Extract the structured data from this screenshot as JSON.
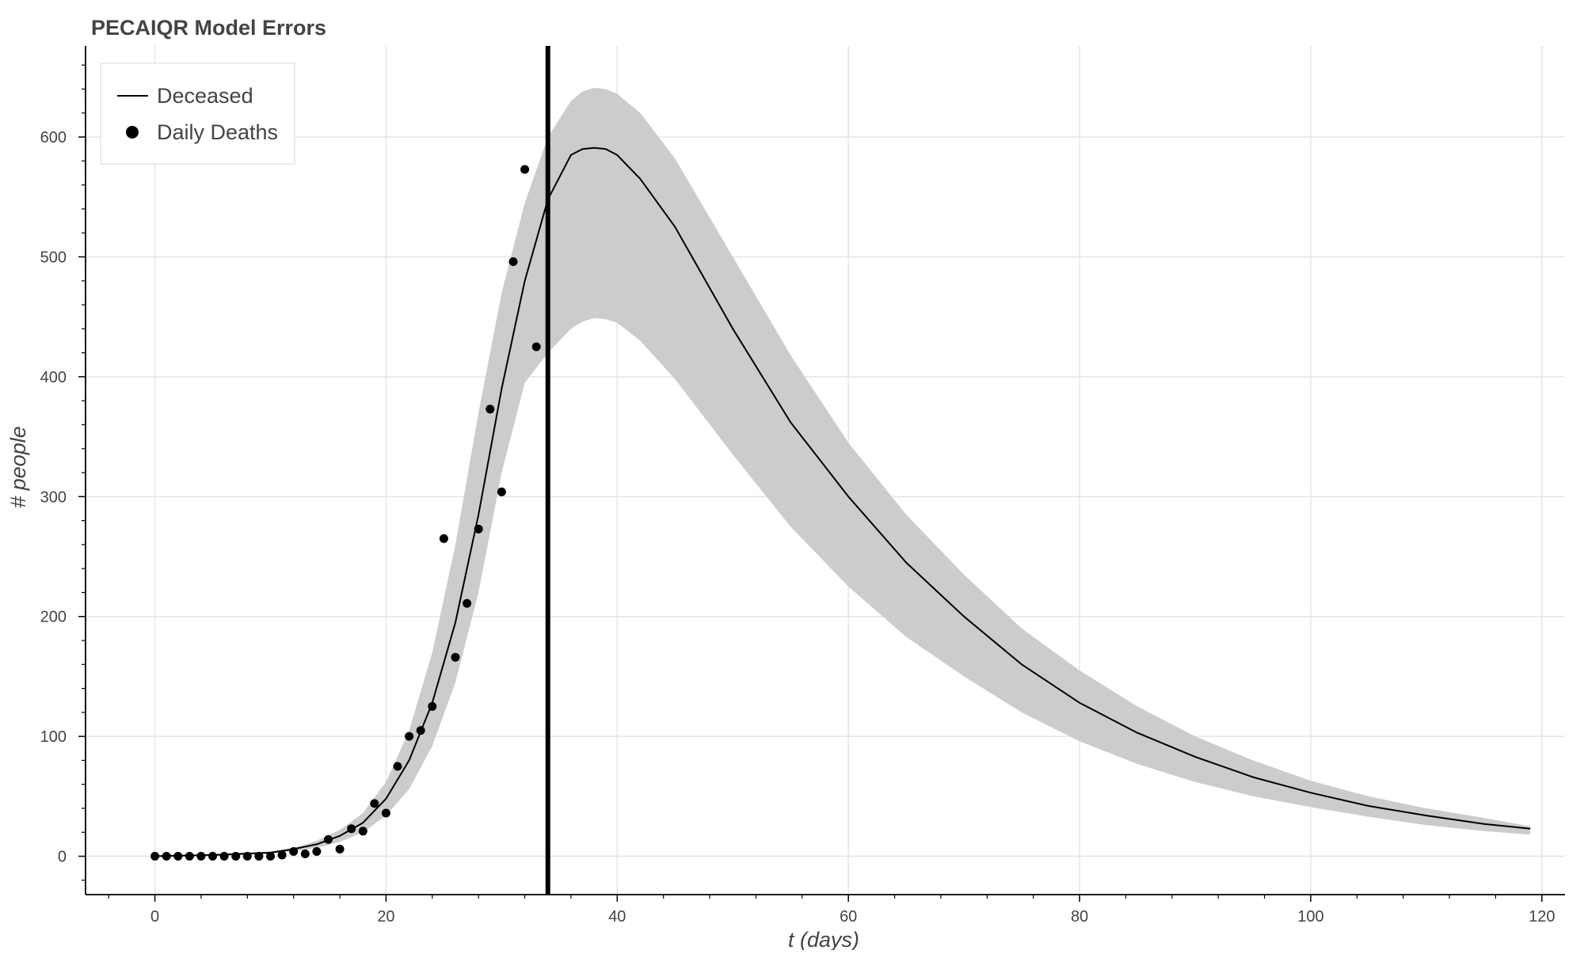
{
  "chart_data": {
    "type": "line",
    "title": "PECAIQR Model Errors",
    "xlabel": "t (days)",
    "ylabel": "# people",
    "xlim": [
      -6,
      122
    ],
    "ylim": [
      -32,
      676
    ],
    "x_ticks": [
      0,
      20,
      40,
      60,
      80,
      100,
      120
    ],
    "y_ticks": [
      0,
      100,
      200,
      300,
      400,
      500,
      600
    ],
    "grid": true,
    "legend_placement": "top-left",
    "legend": [
      {
        "label": "Deceased",
        "kind": "line"
      },
      {
        "label": "Daily Deaths",
        "kind": "marker"
      }
    ],
    "vertical_line_x": 34,
    "series": [
      {
        "name": "Deceased",
        "type": "line",
        "color": "#000000",
        "x": [
          0,
          5,
          10,
          12,
          14,
          16,
          18,
          20,
          22,
          24,
          26,
          28,
          30,
          32,
          34,
          36,
          37,
          38,
          39,
          40,
          42,
          45,
          50,
          55,
          60,
          65,
          70,
          75,
          80,
          85,
          90,
          95,
          100,
          105,
          110,
          115,
          119
        ],
        "y": [
          0,
          1,
          3,
          6,
          10,
          17,
          28,
          48,
          80,
          128,
          195,
          285,
          390,
          480,
          548,
          585,
          590,
          591,
          590,
          585,
          565,
          525,
          440,
          362,
          300,
          245,
          200,
          160,
          128,
          103,
          83,
          66,
          53,
          42,
          34,
          27,
          23
        ]
      },
      {
        "name": "Error band",
        "type": "area",
        "color": "#cccccc",
        "x": [
          0,
          5,
          10,
          12,
          14,
          16,
          18,
          20,
          22,
          24,
          26,
          28,
          30,
          32,
          34,
          36,
          37,
          38,
          39,
          40,
          42,
          45,
          50,
          55,
          60,
          65,
          70,
          75,
          80,
          85,
          90,
          95,
          100,
          105,
          110,
          115,
          119
        ],
        "upper": [
          1,
          2,
          4,
          7,
          13,
          22,
          36,
          62,
          105,
          170,
          260,
          370,
          470,
          545,
          600,
          630,
          638,
          641,
          640,
          636,
          620,
          582,
          500,
          418,
          345,
          285,
          235,
          190,
          155,
          125,
          100,
          80,
          63,
          50,
          40,
          32,
          25
        ],
        "lower": [
          0,
          0,
          2,
          4,
          7,
          12,
          20,
          34,
          56,
          92,
          145,
          220,
          320,
          395,
          420,
          440,
          446,
          449,
          448,
          445,
          430,
          398,
          335,
          275,
          225,
          183,
          150,
          120,
          96,
          77,
          62,
          50,
          41,
          33,
          26,
          21,
          18
        ]
      },
      {
        "name": "Daily Deaths",
        "type": "scatter",
        "color": "#000000",
        "x": [
          0,
          1,
          2,
          3,
          4,
          5,
          6,
          7,
          8,
          9,
          10,
          11,
          12,
          13,
          14,
          15,
          16,
          17,
          18,
          19,
          20,
          21,
          22,
          23,
          24,
          25,
          26,
          27,
          28,
          29,
          30,
          31,
          32,
          33
        ],
        "y": [
          0,
          0,
          0,
          0,
          0,
          0,
          0,
          0,
          0,
          0,
          0,
          1,
          4,
          2,
          4,
          14,
          6,
          23,
          21,
          44,
          36,
          75,
          100,
          105,
          125,
          265,
          166,
          211,
          273,
          373,
          304,
          496,
          573,
          425
        ]
      }
    ]
  }
}
